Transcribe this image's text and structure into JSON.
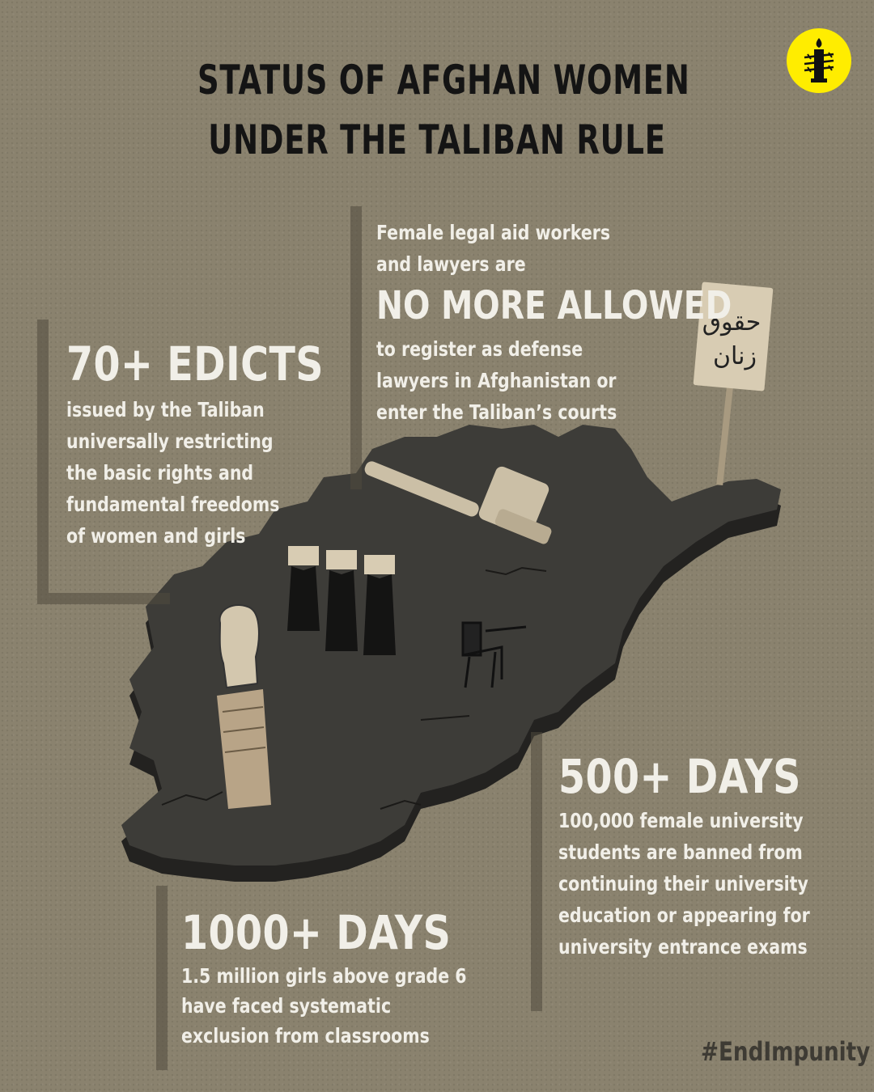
{
  "title": {
    "line1": "STATUS OF AFGHAN WOMEN",
    "line2": "UNDER THE TALIBAN RULE"
  },
  "logo": {
    "icon": "candle-barbed-wire-icon",
    "color": "#ffed00"
  },
  "colors": {
    "background": "#8a826e",
    "text_light": "#f1efe8",
    "title_dark": "#141414",
    "map": "#3d3c38"
  },
  "stats": {
    "edicts": {
      "headline": "70+ EDICTS",
      "lines": [
        "issued by the Taliban",
        "universally restricting",
        "the basic rights and",
        "fundamental freedoms",
        "of women and girls"
      ]
    },
    "lawyers": {
      "intro_lines": [
        "Female legal aid workers",
        "and lawyers are"
      ],
      "headline": "NO MORE ALLOWED",
      "lines": [
        "to register as defense",
        "lawyers in Afghanistan or",
        "enter the Taliban’s courts"
      ]
    },
    "university": {
      "headline": "500+ DAYS",
      "lines": [
        "100,000 female university",
        "students are banned from",
        "continuing their university",
        "education or appearing for",
        "university entrance exams"
      ]
    },
    "schools": {
      "headline": "1000+ DAYS",
      "lines": [
        "1.5 million girls above grade 6",
        "have faced systematic",
        "exclusion from classrooms"
      ]
    }
  },
  "illustration": {
    "sign_text_line1": "حقوق",
    "sign_text_line2": "زنان"
  },
  "hashtag": "#EndImpunity"
}
